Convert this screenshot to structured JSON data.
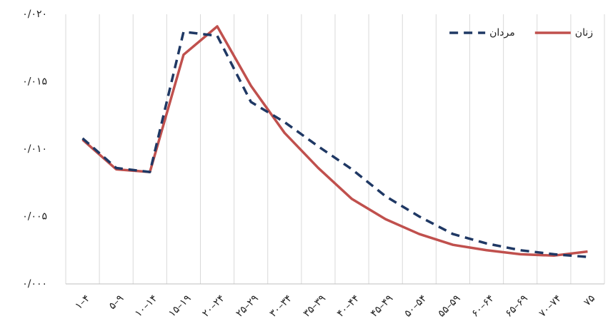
{
  "chart_data": {
    "type": "line",
    "categories": [
      "۱–۴",
      "۵–۹",
      "۱۰–۱۴",
      "۱۵–۱۹",
      "۲۰–۲۴",
      "۲۵–۲۹",
      "۳۰–۳۴",
      "۳۵–۳۹",
      "۴۰–۴۴",
      "۴۵–۴۹",
      "۵۰–۵۴",
      "۵۵–۵۹",
      "۶۰–۶۴",
      "۶۵–۶۹",
      "۷۰–۷۴",
      "۷۵"
    ],
    "series": [
      {
        "name": "زنان",
        "color": "#c0504d",
        "dash": false,
        "values": [
          0.0107,
          0.0085,
          0.0083,
          0.017,
          0.0191,
          0.0147,
          0.0112,
          0.0086,
          0.0063,
          0.0048,
          0.0037,
          0.0029,
          0.0025,
          0.0022,
          0.0021,
          0.0024
        ]
      },
      {
        "name": "مردان",
        "color": "#1f3864",
        "dash": true,
        "values": [
          0.0108,
          0.0086,
          0.0083,
          0.0187,
          0.0184,
          0.0135,
          0.012,
          0.0102,
          0.0085,
          0.0065,
          0.005,
          0.0037,
          0.003,
          0.0025,
          0.0022,
          0.002
        ]
      }
    ],
    "ylim": [
      0,
      0.02
    ],
    "yticks": [
      {
        "value": 0,
        "label": "۰/۰۰۰"
      },
      {
        "value": 0.005,
        "label": "۰/۰۰۵"
      },
      {
        "value": 0.01,
        "label": "۰/۰۱۰"
      },
      {
        "value": 0.015,
        "label": "۰/۰۱۵"
      },
      {
        "value": 0.02,
        "label": "۰/۰۲۰"
      }
    ],
    "grid": "x",
    "legend": "upper-right"
  }
}
